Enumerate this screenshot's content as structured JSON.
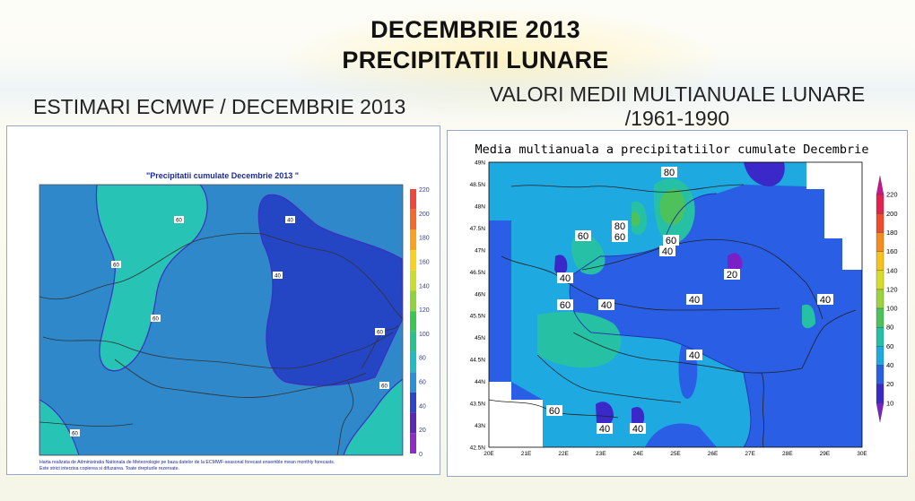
{
  "header": {
    "title_line1": "DECEMBRIE 2013",
    "title_line2": "PRECIPITATII LUNARE"
  },
  "left": {
    "subtitle": "ESTIMARI ECMWF / DECEMBRIE 2013",
    "map_title": "\"Precipitatii cumulate Decembrie 2013 \"",
    "footer_line1": "Harta realizata de Administratia Nationala de Meteorologie pe baza datelor de la ECMWF-seasonal forecast ensemble mean monthly forecasts.",
    "footer_line2": "Este strict interzisa copierea si difuzarea. Toate drepturile rezervate.",
    "contour_labels": [
      "60",
      "60",
      "60",
      "40",
      "40",
      "60",
      "60",
      "60",
      "60"
    ],
    "legend_ticks": [
      "220",
      "200",
      "180",
      "160",
      "140",
      "120",
      "100",
      "80",
      "60",
      "40",
      "20",
      "0"
    ],
    "legend_colors": [
      "#f1473b",
      "#f46a28",
      "#f8a21e",
      "#f6d21e",
      "#c9dd2d",
      "#8fd33d",
      "#39c653",
      "#27c38e",
      "#21bcc2",
      "#2a8fd6",
      "#2b44c8",
      "#5a28b4",
      "#8e2dc4"
    ]
  },
  "right": {
    "subtitle_line1": "VALORI MEDII MULTIANUALE LUNARE",
    "subtitle_line2": "/1961-1990",
    "map_title": "Media multianuala a precipitatiilor cumulate Decembrie",
    "lat_labels": [
      "49N",
      "48.5N",
      "48N",
      "47.5N",
      "47N",
      "46.5N",
      "46N",
      "45.5N",
      "45N",
      "44.5N",
      "44N",
      "43.5N",
      "43N",
      "42.5N"
    ],
    "lon_labels": [
      "20E",
      "21E",
      "22E",
      "23E",
      "24E",
      "25E",
      "26E",
      "27E",
      "28E",
      "29E",
      "30E"
    ],
    "value_labels": [
      "80",
      "80",
      "60",
      "60",
      "60",
      "40",
      "40",
      "20",
      "40",
      "40",
      "60",
      "40",
      "40",
      "60",
      "40",
      "40"
    ],
    "legend_ticks": [
      "220",
      "200",
      "180",
      "160",
      "140",
      "120",
      "100",
      "80",
      "60",
      "40",
      "20",
      "10"
    ],
    "legend_colors": [
      "#c8168e",
      "#e6214f",
      "#f24a2c",
      "#f68b1f",
      "#f5c21e",
      "#d7dc28",
      "#9bd23e",
      "#4ec25a",
      "#26c1a4",
      "#1ea9e1",
      "#2a5ee4",
      "#3a28c8",
      "#7b1fc6"
    ]
  }
}
